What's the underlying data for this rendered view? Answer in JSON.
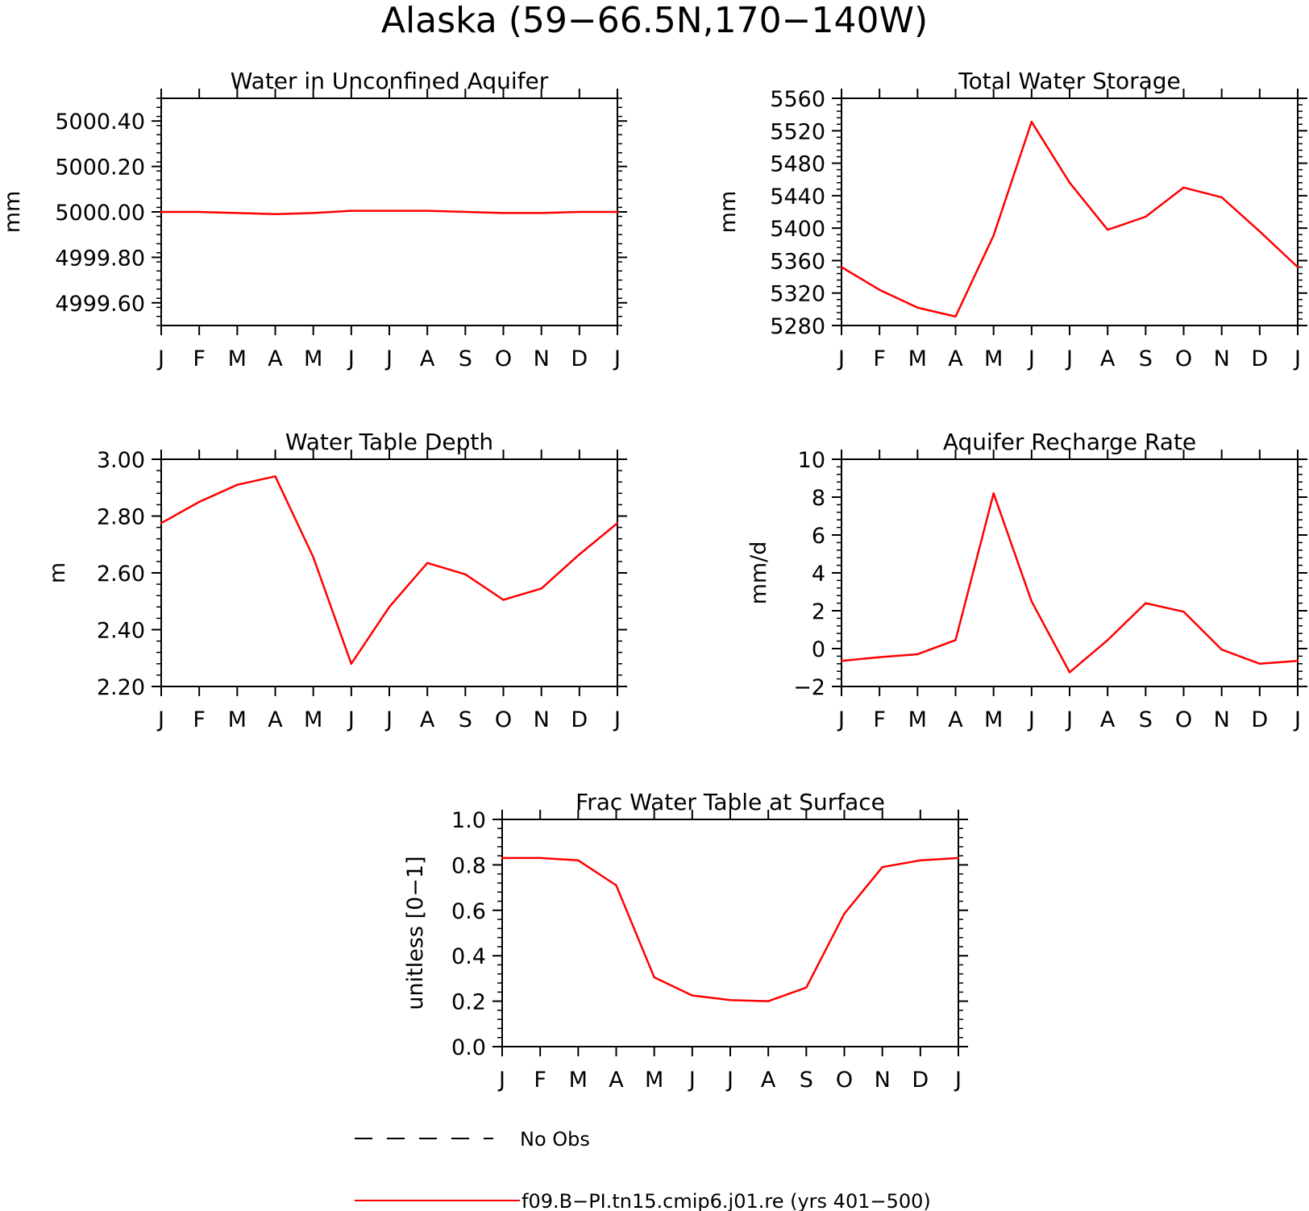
{
  "page_title": "Alaska (59−66.5N,170−140W)",
  "colors": {
    "model_line": "#ff0000",
    "obs_line": "#000000",
    "axes": "#000000"
  },
  "chart_data": [
    {
      "type": "line",
      "title": "Water in Unconfined Aquifer",
      "ylabel": "mm",
      "xlabel": "",
      "categories": [
        "J",
        "F",
        "M",
        "A",
        "M",
        "J",
        "J",
        "A",
        "S",
        "O",
        "N",
        "D",
        "J"
      ],
      "ylim": [
        4999.5,
        5000.5
      ],
      "yticks": [
        4999.6,
        4999.8,
        5000.0,
        5000.2,
        5000.4
      ],
      "ytick_labels": [
        "4999.60",
        "4999.80",
        "5000.00",
        "5000.20",
        "5000.40"
      ],
      "series": [
        {
          "name": "f09.B−PI.tn15.cmip6.j01.re (yrs 401−500)",
          "values": [
            5000.0,
            5000.0,
            4999.995,
            4999.99,
            4999.995,
            5000.005,
            5000.005,
            5000.005,
            5000.0,
            4999.995,
            4999.995,
            5000.0,
            5000.0
          ]
        }
      ],
      "grid": false
    },
    {
      "type": "line",
      "title": "Total Water Storage",
      "ylabel": "mm",
      "xlabel": "",
      "categories": [
        "J",
        "F",
        "M",
        "A",
        "M",
        "J",
        "J",
        "A",
        "S",
        "O",
        "N",
        "D",
        "J"
      ],
      "ylim": [
        5280,
        5560
      ],
      "yticks": [
        5280,
        5320,
        5360,
        5400,
        5440,
        5480,
        5520,
        5560
      ],
      "ytick_labels": [
        "5280",
        "5320",
        "5360",
        "5400",
        "5440",
        "5480",
        "5520",
        "5560"
      ],
      "series": [
        {
          "name": "f09.B−PI.tn15.cmip6.j01.re (yrs 401−500)",
          "values": [
            5352,
            5324,
            5302,
            5291,
            5391,
            5531,
            5456,
            5398,
            5414,
            5450,
            5438,
            5396,
            5352
          ]
        }
      ],
      "grid": false
    },
    {
      "type": "line",
      "title": "Water Table Depth",
      "ylabel": "m",
      "xlabel": "",
      "categories": [
        "J",
        "F",
        "M",
        "A",
        "M",
        "J",
        "J",
        "A",
        "S",
        "O",
        "N",
        "D",
        "J"
      ],
      "ylim": [
        2.2,
        3.0
      ],
      "yticks": [
        2.2,
        2.4,
        2.6,
        2.8,
        3.0
      ],
      "ytick_labels": [
        "2.20",
        "2.40",
        "2.60",
        "2.80",
        "3.00"
      ],
      "series": [
        {
          "name": "f09.B−PI.tn15.cmip6.j01.re (yrs 401−500)",
          "values": [
            2.775,
            2.85,
            2.91,
            2.94,
            2.655,
            2.28,
            2.48,
            2.635,
            2.595,
            2.505,
            2.545,
            2.665,
            2.775
          ]
        }
      ],
      "grid": false
    },
    {
      "type": "line",
      "title": "Aquifer Recharge Rate",
      "ylabel": "mm/d",
      "xlabel": "",
      "categories": [
        "J",
        "F",
        "M",
        "A",
        "M",
        "J",
        "J",
        "A",
        "S",
        "O",
        "N",
        "D",
        "J"
      ],
      "ylim": [
        -2,
        10
      ],
      "yticks": [
        -2,
        0,
        2,
        4,
        6,
        8,
        10
      ],
      "ytick_labels": [
        "−2",
        "0",
        "2",
        "4",
        "6",
        "8",
        "10"
      ],
      "series": [
        {
          "name": "f09.B−PI.tn15.cmip6.j01.re (yrs 401−500)",
          "values": [
            -0.65,
            -0.45,
            -0.3,
            0.45,
            8.2,
            2.5,
            -1.25,
            0.45,
            2.4,
            1.95,
            -0.05,
            -0.8,
            -0.65
          ]
        }
      ],
      "grid": false
    },
    {
      "type": "line",
      "title": "Frac Water Table at Surface",
      "ylabel": "unitless [0−1]",
      "xlabel": "",
      "categories": [
        "J",
        "F",
        "M",
        "A",
        "M",
        "J",
        "J",
        "A",
        "S",
        "O",
        "N",
        "D",
        "J"
      ],
      "ylim": [
        0,
        1
      ],
      "yticks": [
        0,
        0.2,
        0.4,
        0.6,
        0.8,
        1.0
      ],
      "ytick_labels": [
        "0.0",
        "0.2",
        "0.4",
        "0.6",
        "0.8",
        "1.0"
      ],
      "series": [
        {
          "name": "f09.B−PI.tn15.cmip6.j01.re (yrs 401−500)",
          "values": [
            0.83,
            0.83,
            0.82,
            0.71,
            0.305,
            0.225,
            0.205,
            0.2,
            0.26,
            0.585,
            0.79,
            0.82,
            0.83
          ]
        }
      ],
      "grid": false
    }
  ],
  "legend": {
    "placement": "bottom",
    "entries": [
      {
        "label": "No Obs",
        "style": "dashed",
        "color": "#000000"
      },
      {
        "label": "f09.B−PI.tn15.cmip6.j01.re (yrs 401−500)",
        "style": "solid",
        "color": "#ff0000"
      }
    ]
  }
}
